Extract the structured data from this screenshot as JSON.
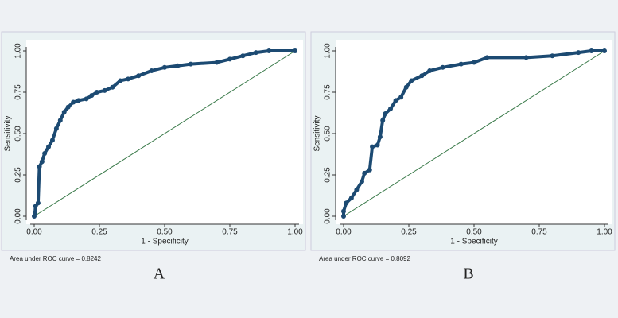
{
  "chart_data": [
    {
      "type": "line",
      "panel_label": "A",
      "xlabel": "1 - Specificity",
      "ylabel": "Sensitivity",
      "annotation": "Area under ROC curve = 0.8242",
      "xlim": [
        0,
        1
      ],
      "ylim": [
        0,
        1
      ],
      "xticks": [
        {
          "value": 0,
          "label": "0.00"
        },
        {
          "value": 0.25,
          "label": "0.25"
        },
        {
          "value": 0.5,
          "label": "0.50"
        },
        {
          "value": 0.75,
          "label": "0.75"
        },
        {
          "value": 1,
          "label": "1.00"
        }
      ],
      "yticks": [
        {
          "value": 0,
          "label": "0.00"
        },
        {
          "value": 0.25,
          "label": "0.25"
        },
        {
          "value": 0.5,
          "label": "0.50"
        },
        {
          "value": 0.75,
          "label": "0.75"
        },
        {
          "value": 1,
          "label": "1.00"
        }
      ],
      "series": [
        {
          "color": "#1c4a72",
          "markers": true,
          "x": [
            0,
            0.003,
            0.005,
            0.015,
            0.02,
            0.03,
            0.04,
            0.055,
            0.07,
            0.085,
            0.1,
            0.115,
            0.13,
            0.15,
            0.17,
            0.2,
            0.22,
            0.24,
            0.27,
            0.3,
            0.33,
            0.36,
            0.4,
            0.45,
            0.5,
            0.55,
            0.6,
            0.7,
            0.75,
            0.8,
            0.85,
            0.9,
            1
          ],
          "values": [
            0,
            0.02,
            0.06,
            0.08,
            0.3,
            0.33,
            0.38,
            0.42,
            0.46,
            0.53,
            0.58,
            0.63,
            0.66,
            0.69,
            0.7,
            0.71,
            0.73,
            0.75,
            0.76,
            0.78,
            0.82,
            0.83,
            0.85,
            0.88,
            0.9,
            0.91,
            0.92,
            0.93,
            0.95,
            0.97,
            0.99,
            1,
            1
          ]
        },
        {
          "color": "#3a7a4a",
          "markers": false,
          "x": [
            0,
            1
          ],
          "values": [
            0,
            1
          ]
        }
      ]
    },
    {
      "type": "line",
      "panel_label": "B",
      "xlabel": "1 - Specificity",
      "ylabel": "Sensitivity",
      "annotation": "Area under ROC curve = 0.8092",
      "xlim": [
        0,
        1
      ],
      "ylim": [
        0,
        1
      ],
      "xticks": [
        {
          "value": 0,
          "label": "0.00"
        },
        {
          "value": 0.25,
          "label": "0.25"
        },
        {
          "value": 0.5,
          "label": "0.50"
        },
        {
          "value": 0.75,
          "label": "0.75"
        },
        {
          "value": 1,
          "label": "1.00"
        }
      ],
      "yticks": [
        {
          "value": 0,
          "label": "0.00"
        },
        {
          "value": 0.25,
          "label": "0.25"
        },
        {
          "value": 0.5,
          "label": "0.50"
        },
        {
          "value": 0.75,
          "label": "0.75"
        },
        {
          "value": 1,
          "label": "1.00"
        }
      ],
      "series": [
        {
          "color": "#1c4a72",
          "markers": true,
          "x": [
            0,
            0,
            0.01,
            0.03,
            0.05,
            0.07,
            0.08,
            0.1,
            0.11,
            0.13,
            0.14,
            0.15,
            0.16,
            0.18,
            0.2,
            0.22,
            0.24,
            0.26,
            0.3,
            0.33,
            0.38,
            0.45,
            0.5,
            0.55,
            0.7,
            0.8,
            0.9,
            0.95,
            1
          ],
          "values": [
            0,
            0.03,
            0.08,
            0.11,
            0.16,
            0.21,
            0.26,
            0.28,
            0.42,
            0.43,
            0.48,
            0.58,
            0.62,
            0.65,
            0.7,
            0.72,
            0.78,
            0.82,
            0.85,
            0.88,
            0.9,
            0.92,
            0.93,
            0.96,
            0.96,
            0.97,
            0.99,
            1,
            1
          ]
        },
        {
          "color": "#3a7a4a",
          "markers": false,
          "x": [
            0,
            1
          ],
          "values": [
            0,
            1
          ]
        }
      ]
    }
  ]
}
